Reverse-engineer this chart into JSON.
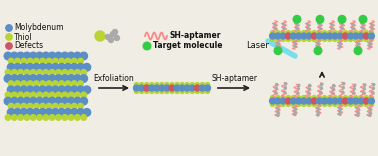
{
  "bg_color": "#f0ede4",
  "mo_color": "#5b8ec5",
  "s_color": "#b8d435",
  "defect_color": "#cc5566",
  "target_color": "#33cc44",
  "aptamer_color": "#ff8888",
  "laser_color": "#66ddee",
  "text_color": "#111111",
  "arrow_color": "#222222",
  "gray_atom": "#aaaaaa",
  "labels": {
    "exfoliation": "Exfoliation",
    "sh_aptamer_label": "SH-aptamer",
    "laser": "Laser",
    "molybdenum": "Molybdenum",
    "thiol": "Thiol",
    "defects": "Defects",
    "sh_aptamer_legend": "SH-aptamer",
    "target_molecule": "Target molecule"
  },
  "figsize": [
    3.78,
    1.56
  ],
  "dpi": 100
}
